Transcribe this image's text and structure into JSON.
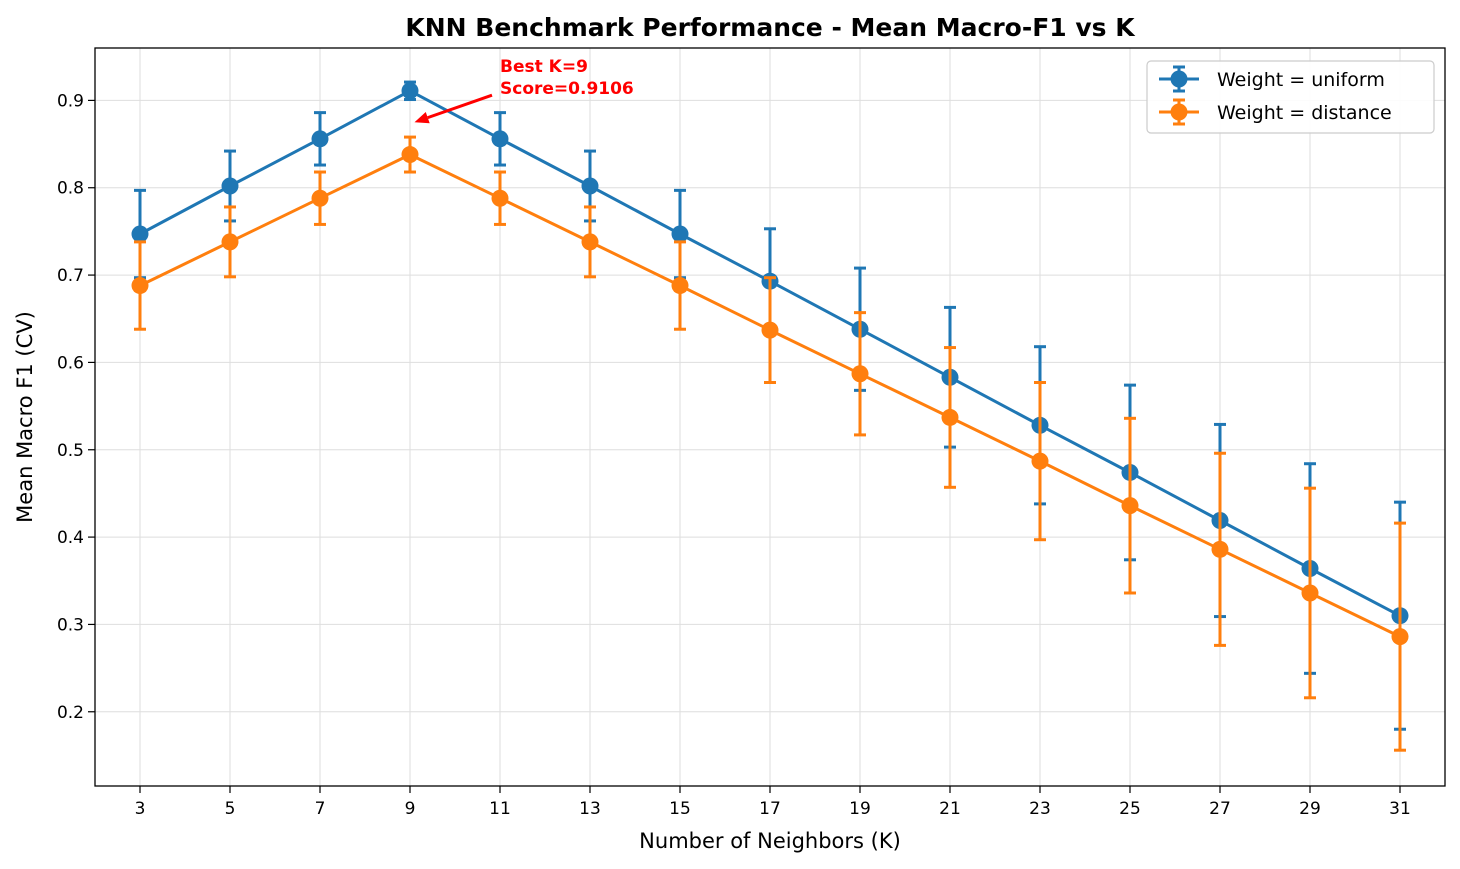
{
  "chart_data": {
    "type": "line",
    "title": "KNN Benchmark Performance - Mean Macro-F1 vs K",
    "xlabel": "Number of Neighbors (K)",
    "ylabel": "Mean Macro F1 (CV)",
    "x": [
      3,
      5,
      7,
      9,
      11,
      13,
      15,
      17,
      19,
      21,
      23,
      25,
      27,
      29,
      31
    ],
    "xticks": [
      "3",
      "5",
      "7",
      "9",
      "11",
      "13",
      "15",
      "17",
      "19",
      "21",
      "23",
      "25",
      "27",
      "29",
      "31"
    ],
    "yticks": [
      "0.2",
      "0.3",
      "0.4",
      "0.5",
      "0.6",
      "0.7",
      "0.8",
      "0.9"
    ],
    "ytick_values": [
      0.2,
      0.3,
      0.4,
      0.5,
      0.6,
      0.7,
      0.8,
      0.9
    ],
    "xlim": [
      2.0,
      32.0
    ],
    "ylim": [
      0.115,
      0.96
    ],
    "grid": true,
    "legend_position": "top-right",
    "series": [
      {
        "name": "Weight = uniform",
        "color": "#1f77b4",
        "values": [
          0.747,
          0.802,
          0.856,
          0.911,
          0.856,
          0.802,
          0.747,
          0.693,
          0.638,
          0.583,
          0.528,
          0.474,
          0.419,
          0.364,
          0.31
        ],
        "errors": [
          0.05,
          0.04,
          0.03,
          0.01,
          0.03,
          0.04,
          0.05,
          0.06,
          0.07,
          0.08,
          0.09,
          0.1,
          0.11,
          0.12,
          0.13
        ]
      },
      {
        "name": "Weight = distance",
        "color": "#ff7f0e",
        "values": [
          0.688,
          0.738,
          0.788,
          0.838,
          0.788,
          0.738,
          0.688,
          0.637,
          0.587,
          0.537,
          0.487,
          0.436,
          0.386,
          0.336,
          0.286
        ],
        "errors": [
          0.05,
          0.04,
          0.03,
          0.02,
          0.03,
          0.04,
          0.05,
          0.06,
          0.07,
          0.08,
          0.09,
          0.1,
          0.11,
          0.12,
          0.13
        ]
      }
    ],
    "annotation": {
      "lines": [
        "Best K=9",
        "Score=0.9106"
      ],
      "color": "#ff0000",
      "text_at": [
        11.0,
        0.93
      ],
      "arrow_to": [
        9.1,
        0.875
      ]
    }
  }
}
